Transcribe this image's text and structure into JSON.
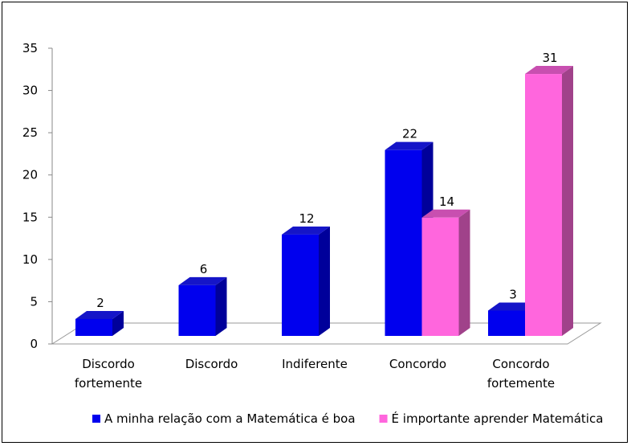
{
  "chart_data": {
    "type": "bar",
    "categories": [
      [
        "Discordo",
        "fortemente"
      ],
      [
        "Discordo"
      ],
      [
        "Indiferente"
      ],
      [
        "Concordo"
      ],
      [
        "Concordo",
        "fortemente"
      ]
    ],
    "series": [
      {
        "name": "A minha relação com a Matemática é boa",
        "values": [
          2,
          6,
          12,
          22,
          3
        ],
        "color": "#0000ee",
        "side_color": "#00009a",
        "top_color": "#1515c8"
      },
      {
        "name": "É importante aprender Matemática",
        "values": [
          null,
          null,
          null,
          14,
          31
        ],
        "color": "#ff66dd",
        "side_color": "#a0428a",
        "top_color": "#c84fb0"
      }
    ],
    "yticks": [
      0,
      5,
      10,
      15,
      20,
      25,
      30,
      35
    ],
    "ylim": [
      0,
      35
    ],
    "grid": false,
    "legend_position": "bottom",
    "title": "",
    "xlabel": "",
    "ylabel": ""
  }
}
